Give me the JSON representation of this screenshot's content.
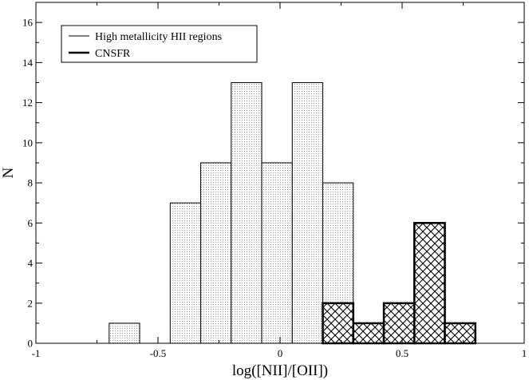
{
  "chart_data": {
    "type": "bar",
    "title": "",
    "xlabel": "log([NII]/[OII])",
    "ylabel": "N",
    "xlim": [
      -1,
      1
    ],
    "ylim": [
      0,
      17
    ],
    "xticks": [
      -1,
      -0.5,
      0,
      0.5,
      1
    ],
    "xtick_labels": [
      "-1",
      "-0.5",
      "0",
      "0.5",
      "1"
    ],
    "yticks": [
      0,
      2,
      4,
      6,
      8,
      10,
      12,
      14,
      16
    ],
    "ytick_labels": [
      "0",
      "2",
      "4",
      "6",
      "8",
      "10",
      "12",
      "14",
      "16"
    ],
    "grid": false,
    "legend_position": "top-left",
    "series": [
      {
        "name": "High metallicity HII regions",
        "style": "light dotted fill, thin outline",
        "color": "#e8e8e8",
        "bins": [
          {
            "x0": -0.7,
            "x1": -0.575,
            "count": 1
          },
          {
            "x0": -0.45,
            "x1": -0.325,
            "count": 7
          },
          {
            "x0": -0.325,
            "x1": -0.2,
            "count": 9
          },
          {
            "x0": -0.2,
            "x1": -0.075,
            "count": 13
          },
          {
            "x0": -0.075,
            "x1": 0.05,
            "count": 9
          },
          {
            "x0": 0.05,
            "x1": 0.175,
            "count": 13
          },
          {
            "x0": 0.175,
            "x1": 0.3,
            "count": 8
          }
        ]
      },
      {
        "name": "CNSFR",
        "style": "cross-hatched fill, thick outline",
        "color": "#000000",
        "bins": [
          {
            "x0": 0.175,
            "x1": 0.3,
            "count": 2
          },
          {
            "x0": 0.3,
            "x1": 0.425,
            "count": 1
          },
          {
            "x0": 0.425,
            "x1": 0.55,
            "count": 2
          },
          {
            "x0": 0.55,
            "x1": 0.675,
            "count": 6
          },
          {
            "x0": 0.675,
            "x1": 0.8,
            "count": 1
          }
        ]
      }
    ]
  }
}
